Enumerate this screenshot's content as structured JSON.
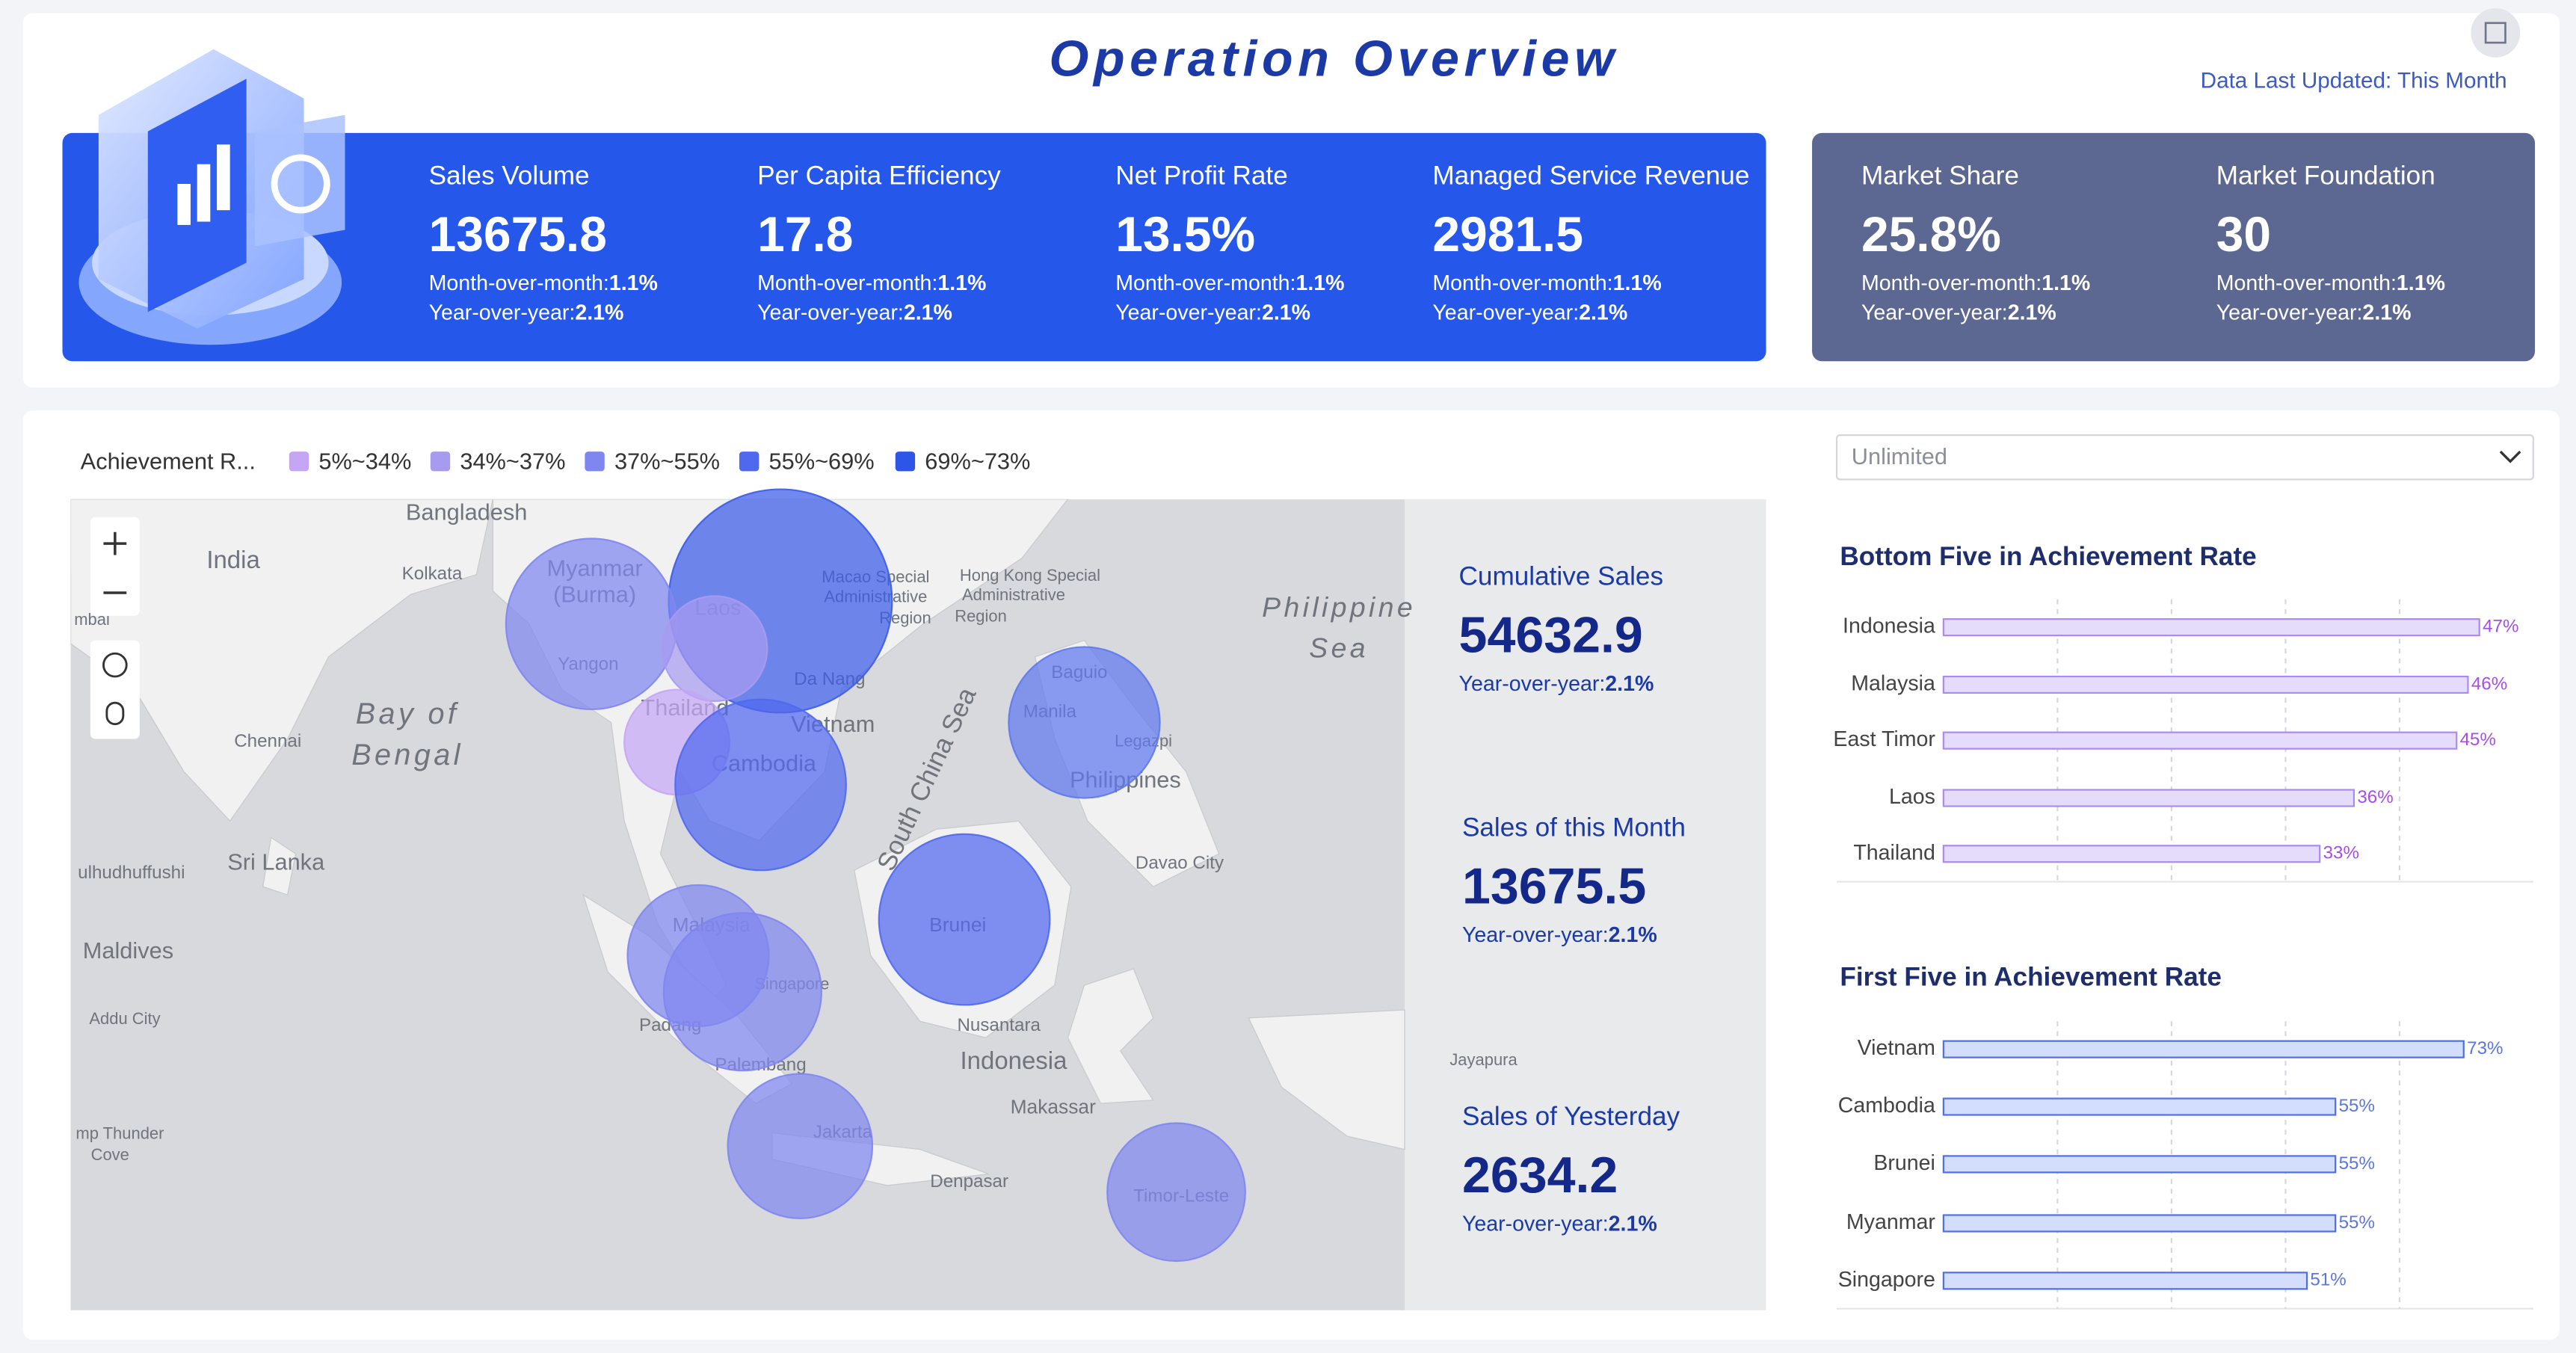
{
  "header": {
    "title": "Operation Overview",
    "updated": "Data Last Updated: This Month"
  },
  "kpis": [
    {
      "label": "Sales Volume",
      "value": 13675.8,
      "mom_label": "Month-over-month:",
      "mom": "1.1%",
      "yoy_label": "Year-over-year:",
      "yoy": "2.1%"
    },
    {
      "label": "Per Capita Efficiency",
      "value": 17.8,
      "mom_label": "Month-over-month:",
      "mom": "1.1%",
      "yoy_label": "Year-over-year:",
      "yoy": "2.1%"
    },
    {
      "label": "Net Profit Rate",
      "value": "13.5%",
      "mom_label": "Month-over-month:",
      "mom": "1.1%",
      "yoy_label": "Year-over-year:",
      "yoy": "2.1%"
    },
    {
      "label": "Managed Service Revenue",
      "value": 2981.5,
      "mom_label": "Month-over-month:",
      "mom": "1.1%",
      "yoy_label": "Year-over-year:",
      "yoy": "2.1%"
    }
  ],
  "market": [
    {
      "label": "Market Share",
      "value": "25.8%",
      "mom_label": "Month-over-month:",
      "mom": "1.1%",
      "yoy_label": "Year-over-year:",
      "yoy": "2.1%"
    },
    {
      "label": "Market Foundation",
      "value": 30,
      "mom_label": "Month-over-month:",
      "mom": "1.1%",
      "yoy_label": "Year-over-year:",
      "yoy": "2.1%"
    }
  ],
  "map": {
    "legend_title": "Achievement R...",
    "ranges": [
      {
        "label": "5%~34%",
        "color": "#c4a6f5"
      },
      {
        "label": "34%~37%",
        "color": "#a79bf0"
      },
      {
        "label": "37%~55%",
        "color": "#7f86f0"
      },
      {
        "label": "55%~69%",
        "color": "#5068ee"
      },
      {
        "label": "69%~73%",
        "color": "#2d56e8"
      }
    ],
    "bubbles": [
      {
        "color": "#3a5ce8"
      },
      {
        "color": "#7f86f0"
      },
      {
        "color": "#a79bf0"
      },
      {
        "color": "#c4a6f5"
      },
      {
        "color": "#5068ee"
      },
      {
        "color": "#5f78ee"
      },
      {
        "color": "#5068ee"
      },
      {
        "color": "#7f86f0"
      },
      {
        "color": "#7f86f0"
      },
      {
        "color": "#7f86f0"
      },
      {
        "color": "#7f86f0"
      }
    ],
    "places": [
      "Bangladesh",
      "India",
      "Kolkata",
      "Myanmar",
      "(Burma)",
      "Yangon",
      "Laos",
      "Macao Special",
      "Administrative",
      "Region",
      "Hong Kong Special",
      "Administrative",
      "Region",
      "Philippine",
      "Sea",
      "Bay of",
      "Bengal",
      "Chennai",
      "Thailand",
      "Vietnam",
      "Da Nang",
      "Cambodia",
      "South China Sea",
      "Baguio",
      "Manila",
      "Legazpi",
      "Philippines",
      "Sri Lanka",
      "Davao City",
      "ulhudhuffushi",
      "Maldives",
      "Malaysia",
      "Singapore",
      "Brunei",
      "Padang",
      "Palembang",
      "Nusantara",
      "Indonesia",
      "Makassar",
      "Jakarta",
      "Denpasar",
      "Timor-Leste",
      "Jayapura",
      "Addu City",
      "mp Thunder",
      "Cove",
      "mbai"
    ]
  },
  "summary": [
    {
      "label": "Cumulative Sales",
      "value": 54632.9,
      "yoy_label": "Year-over-year:",
      "yoy": "2.1%"
    },
    {
      "label": "Sales of this Month",
      "value": 13675.5,
      "yoy_label": "Year-over-year:",
      "yoy": "2.1%"
    },
    {
      "label": "Sales of Yesterday",
      "value": 2634.2,
      "yoy_label": "Year-over-year:",
      "yoy": "2.1%"
    }
  ],
  "dropdown": "Unlimited",
  "bottom_five": {
    "type": "bar",
    "title": "Bottom Five in Achievement Rate",
    "categories": [
      "Indonesia",
      "Malaysia",
      "East Timor",
      "Laos",
      "Thailand"
    ],
    "values": [
      47,
      46,
      45,
      36,
      33
    ],
    "value_labels": [
      "47%",
      "46%",
      "45%",
      "36%",
      "33%"
    ],
    "xlim": [
      0,
      50
    ],
    "grid": true,
    "color": "#e5dcfb",
    "border": "#a98bf3",
    "label_color": "#a64ee8"
  },
  "first_five": {
    "type": "bar",
    "title": "First Five in Achievement Rate",
    "categories": [
      "Vietnam",
      "Cambodia",
      "Brunei",
      "Myanmar",
      "Singapore"
    ],
    "values": [
      73,
      55,
      55,
      55,
      51
    ],
    "value_labels": [
      "73%",
      "55%",
      "55%",
      "55%",
      "51%"
    ],
    "xlim": [
      0,
      80
    ],
    "grid": true,
    "color": "#d2defb",
    "border": "#4f6fe8",
    "label_color": "#5a76e0"
  }
}
